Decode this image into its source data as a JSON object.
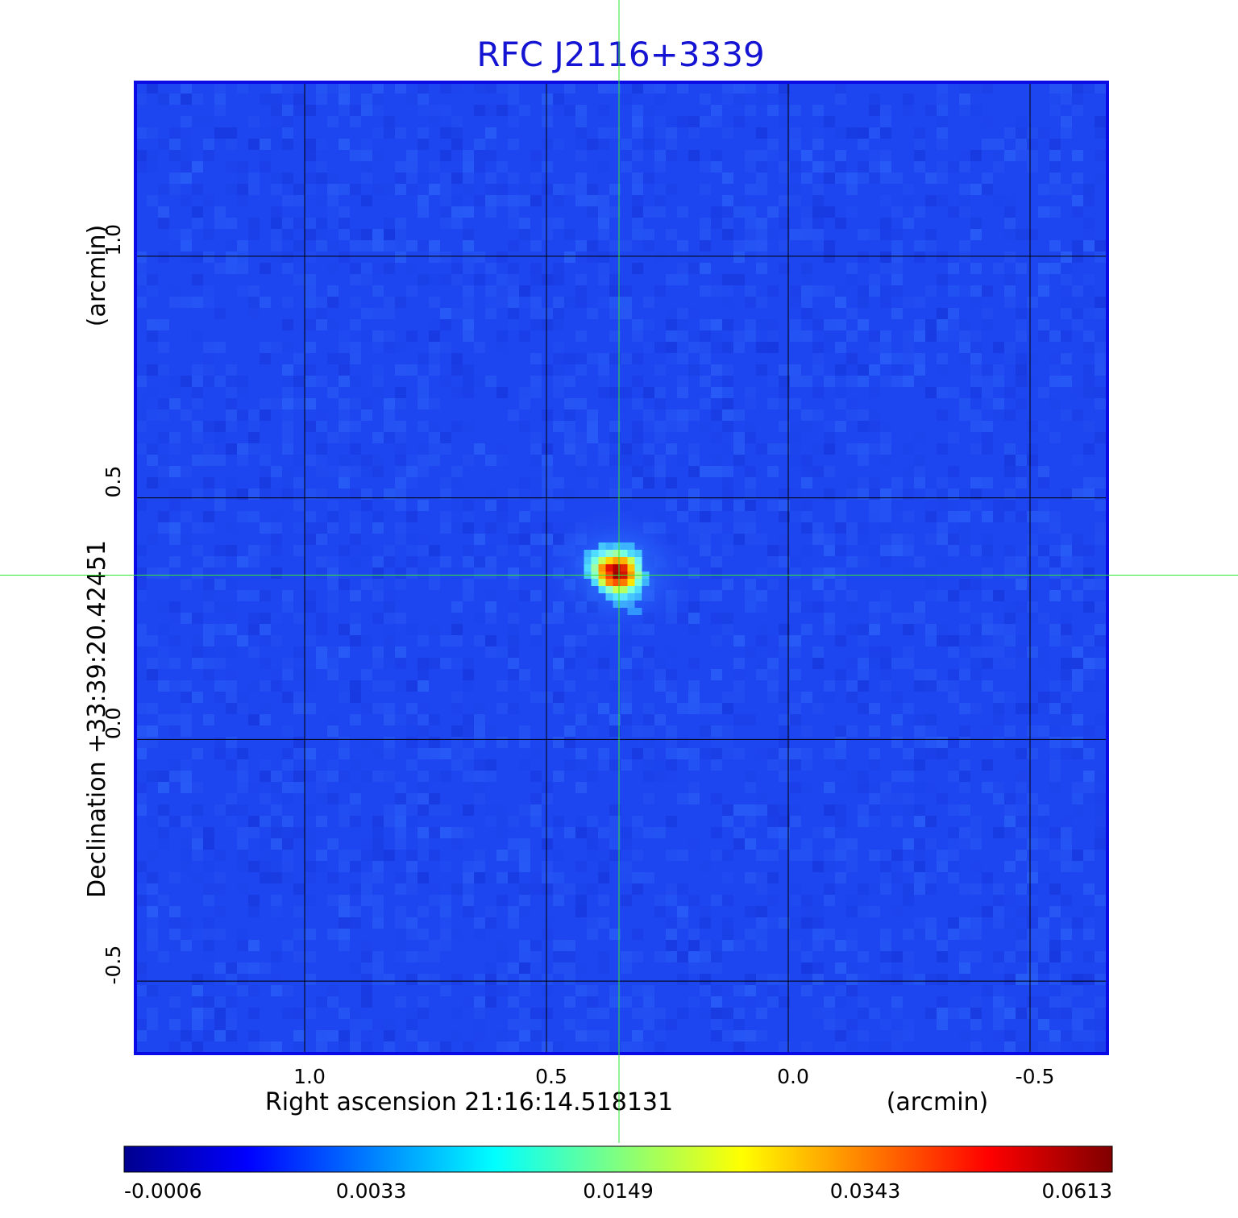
{
  "chart_data": {
    "type": "heatmap",
    "title": "RFC J2116+3339",
    "xlabel": "Right ascension  21:16:14.518131",
    "xunit": "(arcmin)",
    "ylabel": "Declination  +33:39:20.42451",
    "yunit": "(arcmin)",
    "x_range": [
      1.35,
      -0.66
    ],
    "y_range": [
      -0.65,
      1.36
    ],
    "x_ticks": [
      1.0,
      0.5,
      0.0,
      -0.5
    ],
    "x_tick_labels": [
      "1.0",
      "0.5",
      "0.0",
      "-0.5"
    ],
    "y_ticks": [
      1.0,
      0.5,
      0.0,
      -0.5
    ],
    "y_tick_labels": [
      "1.0",
      "0.5",
      "0.0",
      "-0.5"
    ],
    "grid": true,
    "crosshair": {
      "x": 0.35,
      "y": 0.34
    },
    "source_peak": {
      "x": 0.34,
      "y": 0.34,
      "value": 0.0613
    },
    "colorbar": {
      "ticks": [
        -0.0006,
        0.0033,
        0.0149,
        0.0343,
        0.0613
      ],
      "tick_labels": [
        "-0.0006",
        "0.0033",
        "0.0149",
        "0.0343",
        "0.0613"
      ],
      "colormap": "jet"
    },
    "colors": {
      "title": "#1414d2",
      "frame": "#0a0ae6",
      "crosshair": "#32e632",
      "grid": "#000000",
      "background_field": "#1e46f0"
    }
  }
}
